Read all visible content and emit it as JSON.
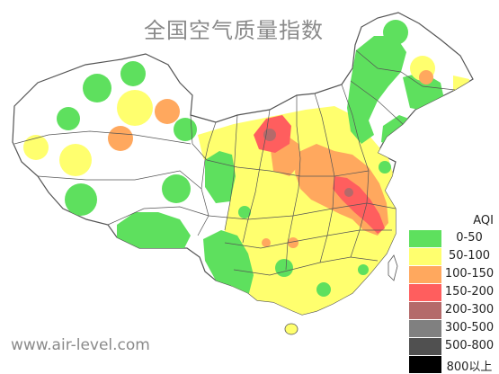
{
  "map": {
    "title": "全国空气质量指数",
    "watermark": "www.air-level.com",
    "colors": {
      "land": "#ffffff",
      "border": "#666666",
      "good": "#5ee05e",
      "moderate": "#ffff6e",
      "sensitive": "#ffa85e",
      "unhealthy": "#ff5e5e",
      "very_unhealthy": "#b46a6a"
    }
  },
  "legend": {
    "title": "AQI",
    "items": [
      {
        "label": "0-50",
        "color": "#5ee05e"
      },
      {
        "label": "50-100",
        "color": "#ffff6e"
      },
      {
        "label": "100-150",
        "color": "#ffa85e"
      },
      {
        "label": "150-200",
        "color": "#ff5e5e"
      },
      {
        "label": "200-300",
        "color": "#b46a6a"
      },
      {
        "label": "300-500",
        "color": "#808080"
      },
      {
        "label": "500-800",
        "color": "#505050"
      },
      {
        "label": "800以上",
        "color": "#000000"
      }
    ]
  }
}
